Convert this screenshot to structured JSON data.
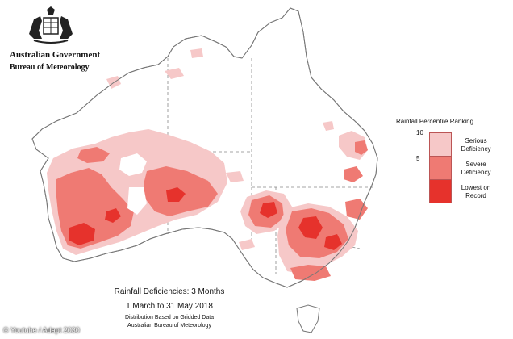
{
  "header": {
    "government": "Australian Government",
    "bureau": "Bureau of Meteorology"
  },
  "legend": {
    "title": "Rainfall Percentile Ranking",
    "tick_top": "10",
    "tick_mid": "5",
    "items": [
      {
        "label": "Serious Deficiency",
        "color": "#f6c8c8"
      },
      {
        "label": "Severe Deficiency",
        "color": "#ef7a73"
      },
      {
        "label": "Lowest on Record",
        "color": "#e6322c"
      }
    ]
  },
  "caption": {
    "title": "Rainfall Deficiencies: 3 Months",
    "dates": "1 March to 31 May 2018",
    "line3": "Distribution Based on Gridded Data",
    "line4": "Australian Bureau of Meteorology"
  },
  "watermark": "© Youtube / Adapt 2030",
  "colors": {
    "land": "#ffffff",
    "outline": "#777777",
    "border": "#888888",
    "serious": "#f6c8c8",
    "severe": "#ef7a73",
    "record": "#e6322c"
  }
}
